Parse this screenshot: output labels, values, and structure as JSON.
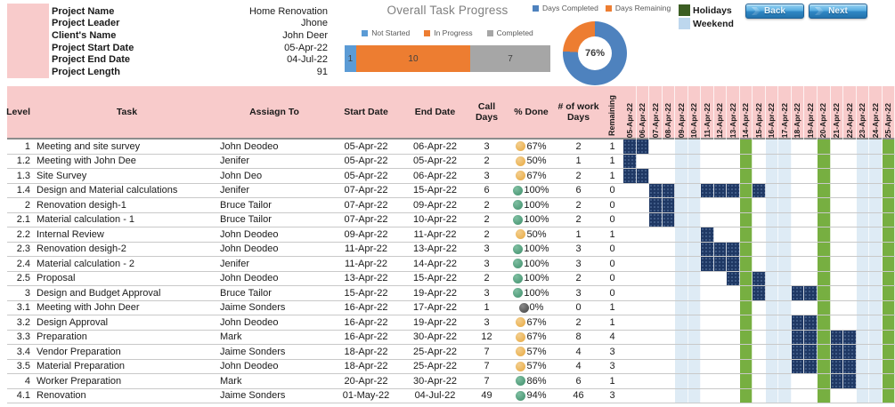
{
  "project_info": {
    "rows": [
      {
        "label": "Project Name",
        "value": "Home Renovation"
      },
      {
        "label": "Project Leader",
        "value": "Jhone"
      },
      {
        "label": "Client's Name",
        "value": "John Deer"
      },
      {
        "label": "Project Start Date",
        "value": "05-Apr-22"
      },
      {
        "label": "Project End Date",
        "value": "04-Jul-22"
      },
      {
        "label": "Project Length",
        "value": "91"
      }
    ]
  },
  "chart_data": [
    {
      "type": "bar",
      "subtype": "horizontal-stacked",
      "title": "Overall Task Progress",
      "categories": [
        "Tasks"
      ],
      "series": [
        {
          "name": "Not Started",
          "values": [
            1
          ],
          "color": "#5B9BD5"
        },
        {
          "name": "In Progress",
          "values": [
            10
          ],
          "color": "#ED7D31"
        },
        {
          "name": "Completed",
          "values": [
            7
          ],
          "color": "#A6A6A6"
        }
      ],
      "total": 18,
      "legend_position": "top",
      "data_labels": true
    },
    {
      "type": "pie",
      "subtype": "donut",
      "series": [
        {
          "name": "Days Completed",
          "value": 76,
          "color": "#4E82BE"
        },
        {
          "name": "Days Remaining",
          "value": 24,
          "color": "#ED7D31"
        }
      ],
      "center_label": "76%",
      "legend_position": "top"
    }
  ],
  "gantt_legend": {
    "holidays": {
      "label": "Holidays",
      "color": "#3C5E23"
    },
    "weekend": {
      "label": "Weekend",
      "color": "#BDD7EE"
    }
  },
  "buttons": {
    "back": "Back",
    "next": "Next"
  },
  "table": {
    "headers": {
      "level": "Level",
      "task": "Task",
      "assign": "Assiagn To",
      "start": "Start Date",
      "end": "End Date",
      "call": "Call Days",
      "done": "% Done",
      "work": "# of work Days",
      "remaining": "Remaining"
    },
    "date_columns": [
      "05-Apr-22",
      "06-Apr-22",
      "07-Apr-22",
      "08-Apr-22",
      "09-Apr-22",
      "10-Apr-22",
      "11-Apr-22",
      "12-Apr-22",
      "13-Apr-22",
      "14-Apr-22",
      "15-Apr-22",
      "16-Apr-22",
      "17-Apr-22",
      "18-Apr-22",
      "19-Apr-22",
      "20-Apr-22",
      "21-Apr-22",
      "22-Apr-22",
      "23-Apr-22",
      "24-Apr-22",
      "25-Apr-22"
    ],
    "weekend_columns": [
      4,
      5,
      11,
      12,
      18,
      19
    ],
    "holiday_columns": [
      9,
      15,
      20
    ],
    "rows": [
      {
        "level": "1",
        "task": "Meeting and site survey",
        "assign": "John Deodeo",
        "start": "05-Apr-22",
        "end": "06-Apr-22",
        "call_days": "3",
        "done": "67%",
        "icon": "amber",
        "work_days": "2",
        "remaining": "1",
        "bars": [
          0,
          1
        ]
      },
      {
        "level": "1.2",
        "task": "Meeting with John Dee",
        "assign": "Jenifer",
        "start": "05-Apr-22",
        "end": "05-Apr-22",
        "call_days": "2",
        "done": "50%",
        "icon": "amber",
        "work_days": "1",
        "remaining": "1",
        "bars": [
          0
        ]
      },
      {
        "level": "1.3",
        "task": "Site Survey",
        "assign": "John Deo",
        "start": "05-Apr-22",
        "end": "06-Apr-22",
        "call_days": "3",
        "done": "67%",
        "icon": "amber",
        "work_days": "2",
        "remaining": "1",
        "bars": [
          0,
          1
        ]
      },
      {
        "level": "1.4",
        "task": "Design and Material calculations",
        "assign": "Jenifer",
        "start": "07-Apr-22",
        "end": "15-Apr-22",
        "call_days": "6",
        "done": "100%",
        "icon": "green",
        "work_days": "6",
        "remaining": "0",
        "bars": [
          2,
          3,
          6,
          7,
          8,
          10
        ]
      },
      {
        "level": "2",
        "task": "Renovation desigh-1",
        "assign": "Bruce Tailor",
        "start": "07-Apr-22",
        "end": "09-Apr-22",
        "call_days": "2",
        "done": "100%",
        "icon": "green",
        "work_days": "2",
        "remaining": "0",
        "bars": [
          2,
          3
        ]
      },
      {
        "level": "2.1",
        "task": "Material calculation - 1",
        "assign": "Bruce Tailor",
        "start": "07-Apr-22",
        "end": "10-Apr-22",
        "call_days": "2",
        "done": "100%",
        "icon": "green",
        "work_days": "2",
        "remaining": "0",
        "bars": [
          2,
          3
        ]
      },
      {
        "level": "2.2",
        "task": "Internal Review",
        "assign": "John Deodeo",
        "start": "09-Apr-22",
        "end": "11-Apr-22",
        "call_days": "2",
        "done": "50%",
        "icon": "amber",
        "work_days": "1",
        "remaining": "1",
        "bars": [
          6
        ]
      },
      {
        "level": "2.3",
        "task": "Renovation desigh-2",
        "assign": "John Deodeo",
        "start": "11-Apr-22",
        "end": "13-Apr-22",
        "call_days": "3",
        "done": "100%",
        "icon": "green",
        "work_days": "3",
        "remaining": "0",
        "bars": [
          6,
          7,
          8
        ]
      },
      {
        "level": "2.4",
        "task": "Material calculation - 2",
        "assign": "Jenifer",
        "start": "11-Apr-22",
        "end": "14-Apr-22",
        "call_days": "3",
        "done": "100%",
        "icon": "green",
        "work_days": "3",
        "remaining": "0",
        "bars": [
          6,
          7,
          8
        ]
      },
      {
        "level": "2.5",
        "task": "Proposal",
        "assign": "John Deodeo",
        "start": "13-Apr-22",
        "end": "15-Apr-22",
        "call_days": "2",
        "done": "100%",
        "icon": "green",
        "work_days": "2",
        "remaining": "0",
        "bars": [
          8,
          10
        ]
      },
      {
        "level": "3",
        "task": "Design and Budget Approval",
        "assign": "Bruce Tailor",
        "start": "15-Apr-22",
        "end": "19-Apr-22",
        "call_days": "3",
        "done": "100%",
        "icon": "green",
        "work_days": "3",
        "remaining": "0",
        "bars": [
          10,
          13,
          14
        ]
      },
      {
        "level": "3.1",
        "task": "Meeting with John Deer",
        "assign": "Jaime Sonders",
        "start": "16-Apr-22",
        "end": "17-Apr-22",
        "call_days": "1",
        "done": "0%",
        "icon": "gray",
        "work_days": "0",
        "remaining": "1",
        "bars": []
      },
      {
        "level": "3.2",
        "task": "Design Approval",
        "assign": "John Deodeo",
        "start": "16-Apr-22",
        "end": "19-Apr-22",
        "call_days": "3",
        "done": "67%",
        "icon": "amber",
        "work_days": "2",
        "remaining": "1",
        "bars": [
          13,
          14
        ]
      },
      {
        "level": "3.3",
        "task": "Preparation",
        "assign": "Mark",
        "start": "16-Apr-22",
        "end": "30-Apr-22",
        "call_days": "12",
        "done": "67%",
        "icon": "amber",
        "work_days": "8",
        "remaining": "4",
        "bars": [
          13,
          14,
          16,
          17
        ]
      },
      {
        "level": "3.4",
        "task": "Vendor Preparation",
        "assign": "Jaime Sonders",
        "start": "18-Apr-22",
        "end": "25-Apr-22",
        "call_days": "7",
        "done": "57%",
        "icon": "amber",
        "work_days": "4",
        "remaining": "3",
        "bars": [
          13,
          14,
          16,
          17
        ]
      },
      {
        "level": "3.5",
        "task": "Material Preparation",
        "assign": "John Deodeo",
        "start": "18-Apr-22",
        "end": "25-Apr-22",
        "call_days": "7",
        "done": "57%",
        "icon": "amber",
        "work_days": "4",
        "remaining": "3",
        "bars": [
          13,
          14,
          16,
          17
        ]
      },
      {
        "level": "4",
        "task": "Worker Preparation",
        "assign": "Mark",
        "start": "20-Apr-22",
        "end": "30-Apr-22",
        "call_days": "7",
        "done": "86%",
        "icon": "green",
        "work_days": "6",
        "remaining": "1",
        "bars": [
          16,
          17
        ]
      },
      {
        "level": "4.1",
        "task": "Renovation",
        "assign": "Jaime Sonders",
        "start": "01-May-22",
        "end": "04-Jul-22",
        "call_days": "49",
        "done": "94%",
        "icon": "green",
        "work_days": "46",
        "remaining": "3",
        "bars": []
      }
    ]
  },
  "colors": {
    "header_pink": "#F8CBCB",
    "gantt_bar": "#1F3864",
    "holiday_column": "#77AF41",
    "weekend_column": "#DEEBF5",
    "accent_blue": "#5B9BD5",
    "accent_orange": "#ED7D31",
    "accent_gray": "#A6A6A6"
  }
}
